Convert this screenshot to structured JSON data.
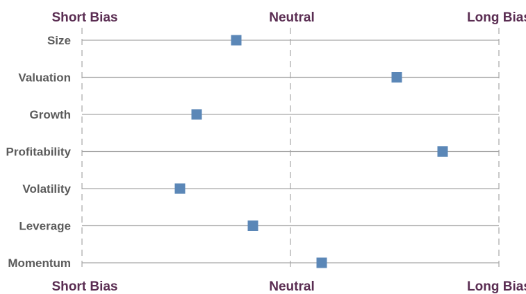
{
  "chart_data": {
    "type": "scatter",
    "title": "",
    "scale_labels": {
      "left": "Short Bias",
      "center": "Neutral",
      "right": "Long Bias"
    },
    "xlim": [
      -1,
      1
    ],
    "grid": "vertical dashed at Short Bias, Neutral and Long Bias",
    "categories": [
      "Size",
      "Valuation",
      "Growth",
      "Profitability",
      "Volatility",
      "Leverage",
      "Momentum"
    ],
    "values": [
      -0.26,
      0.51,
      -0.45,
      0.73,
      -0.53,
      -0.18,
      0.15
    ],
    "marker_color": "#5b87b7"
  }
}
